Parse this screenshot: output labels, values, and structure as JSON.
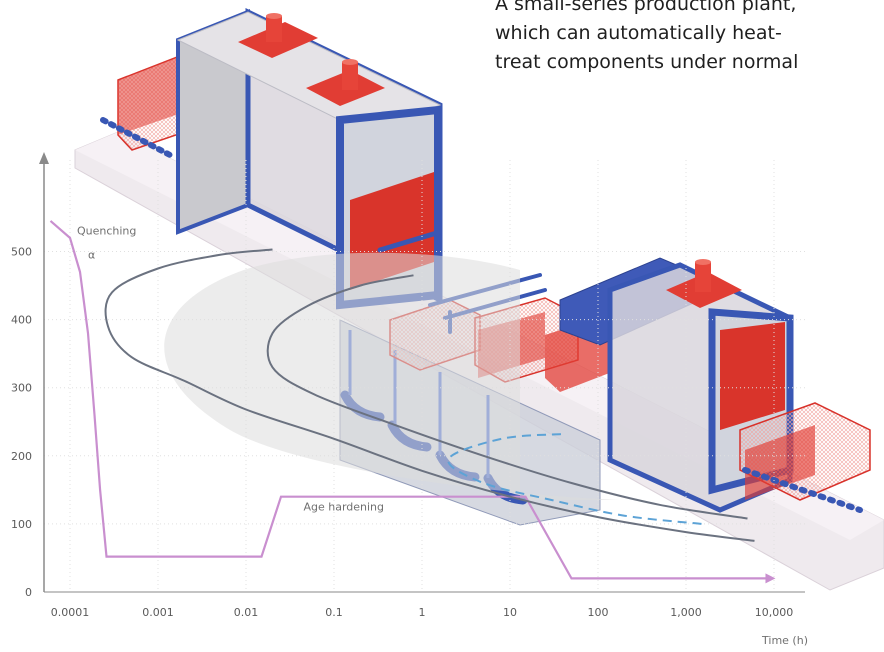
{
  "caption": {
    "lines": [
      "A small-series production plant,",
      "which can automatically heat-",
      "treat components under normal"
    ]
  },
  "illustration": {
    "subject": "heat-treatment production plant",
    "colors": {
      "frame": "#2f4fb0",
      "basket": "#d82a20",
      "glass": "#d8d8dc",
      "rail": "#eeeaee"
    }
  },
  "chart_data": {
    "type": "line",
    "x_scale": "log",
    "x_ticks": [
      "0.0001",
      "0.001",
      "0.01",
      "0.1",
      "1",
      "10",
      "100",
      "1,000",
      "10,000"
    ],
    "x_tick_values": [
      0.0001,
      0.001,
      0.01,
      0.1,
      1,
      10,
      100,
      1000,
      10000
    ],
    "xlabel": "Time (h)",
    "y_ticks": [
      "0",
      "100",
      "200",
      "300",
      "400",
      "500"
    ],
    "y_tick_values": [
      0,
      100,
      200,
      300,
      400,
      500
    ],
    "ylim": [
      0,
      620
    ],
    "grid": true,
    "annotations": [
      {
        "text": "Quenching",
        "x": 0.00012,
        "y": 525
      },
      {
        "text": "α",
        "x": 0.00016,
        "y": 490
      },
      {
        "text": "Age hardening",
        "x": 0.045,
        "y": 120
      }
    ],
    "series": [
      {
        "role": "temperature-time path",
        "color": "#c98fcf",
        "points": [
          [
            6e-05,
            545
          ],
          [
            0.0001,
            520
          ],
          [
            0.00013,
            470
          ],
          [
            0.00016,
            380
          ],
          [
            0.00019,
            260
          ],
          [
            0.00022,
            150
          ],
          [
            0.00026,
            52
          ],
          [
            0.015,
            52
          ],
          [
            0.025,
            140
          ],
          [
            15,
            140
          ],
          [
            50,
            20
          ],
          [
            8000,
            20
          ]
        ]
      },
      {
        "role": "outer transformation curve",
        "color": "#6b7280",
        "points": [
          [
            6000,
            75
          ],
          [
            1000,
            88
          ],
          [
            100,
            110
          ],
          [
            10,
            140
          ],
          [
            1,
            178
          ],
          [
            0.1,
            225
          ],
          [
            0.01,
            268
          ],
          [
            0.002,
            310
          ],
          [
            0.0005,
            345
          ],
          [
            0.00027,
            390
          ],
          [
            0.0003,
            440
          ],
          [
            0.001,
            475
          ],
          [
            0.005,
            495
          ],
          [
            0.02,
            503
          ]
        ]
      },
      {
        "role": "inner transformation curve",
        "color": "#6b7280",
        "points": [
          [
            5000,
            108
          ],
          [
            500,
            128
          ],
          [
            50,
            160
          ],
          [
            5,
            200
          ],
          [
            0.5,
            245
          ],
          [
            0.06,
            290
          ],
          [
            0.02,
            330
          ],
          [
            0.02,
            380
          ],
          [
            0.05,
            420
          ],
          [
            0.2,
            450
          ],
          [
            0.8,
            465
          ]
        ]
      },
      {
        "role": "dashed curve",
        "color": "#5da3d6",
        "dashed": true,
        "points": [
          [
            1500,
            100
          ],
          [
            200,
            112
          ],
          [
            30,
            135
          ],
          [
            5,
            160
          ],
          [
            2,
            195
          ],
          [
            8,
            225
          ],
          [
            40,
            232
          ]
        ]
      }
    ]
  }
}
